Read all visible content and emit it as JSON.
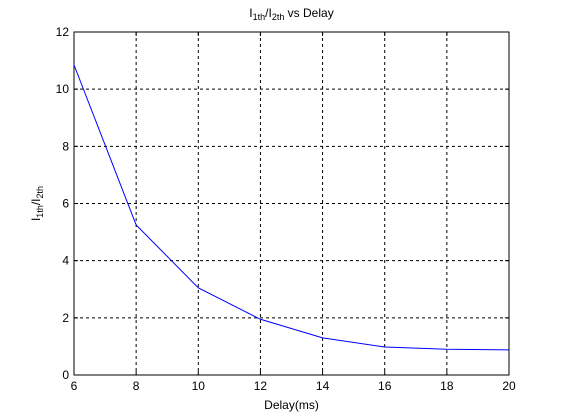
{
  "chart_data": {
    "type": "line",
    "title": {
      "parts": [
        {
          "text": "I",
          "sub": false
        },
        {
          "text": "1th",
          "sub": true
        },
        {
          "text": "/I",
          "sub": false
        },
        {
          "text": "2th",
          "sub": true
        },
        {
          "text": " vs Delay",
          "sub": false
        }
      ]
    },
    "xlabel": "Delay(ms)",
    "ylabel": {
      "parts": [
        {
          "text": "I",
          "sub": false
        },
        {
          "text": "1th",
          "sub": true
        },
        {
          "text": "/I",
          "sub": false
        },
        {
          "text": "2th",
          "sub": true
        }
      ]
    },
    "xlim": [
      6,
      20
    ],
    "ylim": [
      0,
      12
    ],
    "xticks": [
      6,
      8,
      10,
      12,
      14,
      16,
      18,
      20
    ],
    "yticks": [
      0,
      2,
      4,
      6,
      8,
      10,
      12
    ],
    "grid": true,
    "series": [
      {
        "color": "#0000ff",
        "x": [
          6,
          8,
          10,
          12,
          14,
          16,
          18,
          20
        ],
        "y": [
          10.85,
          5.25,
          3.05,
          1.95,
          1.3,
          0.98,
          0.9,
          0.88
        ]
      }
    ]
  }
}
